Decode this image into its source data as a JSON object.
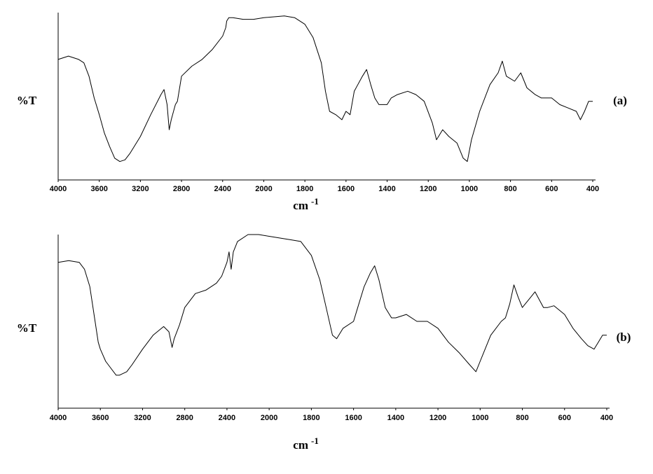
{
  "chart_data": [
    {
      "type": "line",
      "label": "(a)",
      "ylabel": "%T",
      "xlabel": "cm",
      "xlabel_sup": "-1",
      "color": "#000000",
      "xlim": [
        4000,
        400
      ],
      "xticks": [
        4000,
        3600,
        3200,
        2800,
        2400,
        2000,
        1800,
        1600,
        1400,
        1200,
        1000,
        800,
        600,
        400
      ],
      "ylim": [
        0,
        100
      ],
      "x": [
        4000,
        3900,
        3800,
        3750,
        3700,
        3650,
        3600,
        3550,
        3500,
        3450,
        3400,
        3350,
        3300,
        3200,
        3100,
        3000,
        2970,
        2940,
        2920,
        2900,
        2860,
        2840,
        2800,
        2700,
        2600,
        2500,
        2400,
        2370,
        2360,
        2340,
        2300,
        2200,
        2100,
        2000,
        1900,
        1850,
        1800,
        1760,
        1720,
        1700,
        1680,
        1650,
        1620,
        1600,
        1580,
        1560,
        1520,
        1500,
        1480,
        1460,
        1440,
        1400,
        1380,
        1350,
        1300,
        1260,
        1220,
        1180,
        1160,
        1130,
        1100,
        1060,
        1030,
        1010,
        990,
        950,
        900,
        860,
        840,
        820,
        780,
        750,
        720,
        680,
        650,
        600,
        560,
        520,
        480,
        460,
        440,
        420,
        400
      ],
      "values": [
        72,
        74,
        72,
        70,
        62,
        49,
        39,
        28,
        20,
        13,
        11,
        12,
        16,
        26,
        39,
        51,
        54,
        45,
        30,
        36,
        45,
        47,
        62,
        68,
        72,
        78,
        86,
        91,
        95,
        97,
        97,
        96,
        96,
        97,
        98,
        97,
        93,
        85,
        70,
        53,
        41,
        39,
        36,
        41,
        39,
        53,
        62,
        66,
        57,
        49,
        45,
        45,
        49,
        51,
        53,
        51,
        47,
        34,
        24,
        30,
        26,
        22,
        13,
        11,
        24,
        41,
        57,
        64,
        71,
        62,
        59,
        64,
        55,
        51,
        49,
        49,
        45,
        43,
        41,
        36,
        41,
        47,
        47
      ]
    },
    {
      "type": "line",
      "label": "(b)",
      "ylabel": "%T",
      "xlabel": "cm",
      "xlabel_sup": "-1",
      "color": "#000000",
      "xlim": [
        4000,
        400
      ],
      "xticks": [
        4000,
        3600,
        3200,
        2800,
        2400,
        2000,
        1800,
        1600,
        1400,
        1200,
        1000,
        800,
        600,
        400
      ],
      "ylim": [
        0,
        100
      ],
      "x": [
        4000,
        3900,
        3800,
        3750,
        3700,
        3650,
        3620,
        3600,
        3550,
        3500,
        3450,
        3420,
        3350,
        3300,
        3200,
        3100,
        3000,
        2950,
        2920,
        2900,
        2850,
        2800,
        2700,
        2600,
        2500,
        2450,
        2400,
        2380,
        2360,
        2340,
        2300,
        2200,
        2100,
        2000,
        1900,
        1850,
        1800,
        1760,
        1730,
        1700,
        1680,
        1650,
        1600,
        1580,
        1550,
        1520,
        1500,
        1480,
        1450,
        1420,
        1400,
        1350,
        1300,
        1250,
        1200,
        1150,
        1100,
        1050,
        1020,
        1000,
        950,
        900,
        880,
        860,
        840,
        820,
        800,
        760,
        740,
        700,
        680,
        650,
        600,
        560,
        520,
        490,
        460,
        440,
        420,
        400
      ],
      "values": [
        84,
        85,
        84,
        80,
        70,
        50,
        38,
        34,
        27,
        23,
        19,
        19,
        21,
        25,
        34,
        42,
        47,
        44,
        35,
        40,
        48,
        58,
        66,
        68,
        72,
        76,
        84,
        90,
        80,
        90,
        96,
        100,
        100,
        99,
        97,
        96,
        88,
        74,
        58,
        42,
        40,
        46,
        50,
        58,
        70,
        78,
        82,
        74,
        58,
        52,
        52,
        54,
        50,
        50,
        46,
        38,
        32,
        25,
        21,
        27,
        42,
        50,
        52,
        60,
        71,
        64,
        58,
        64,
        67,
        58,
        58,
        59,
        54,
        46,
        40,
        36,
        34,
        38,
        42,
        42
      ]
    }
  ]
}
